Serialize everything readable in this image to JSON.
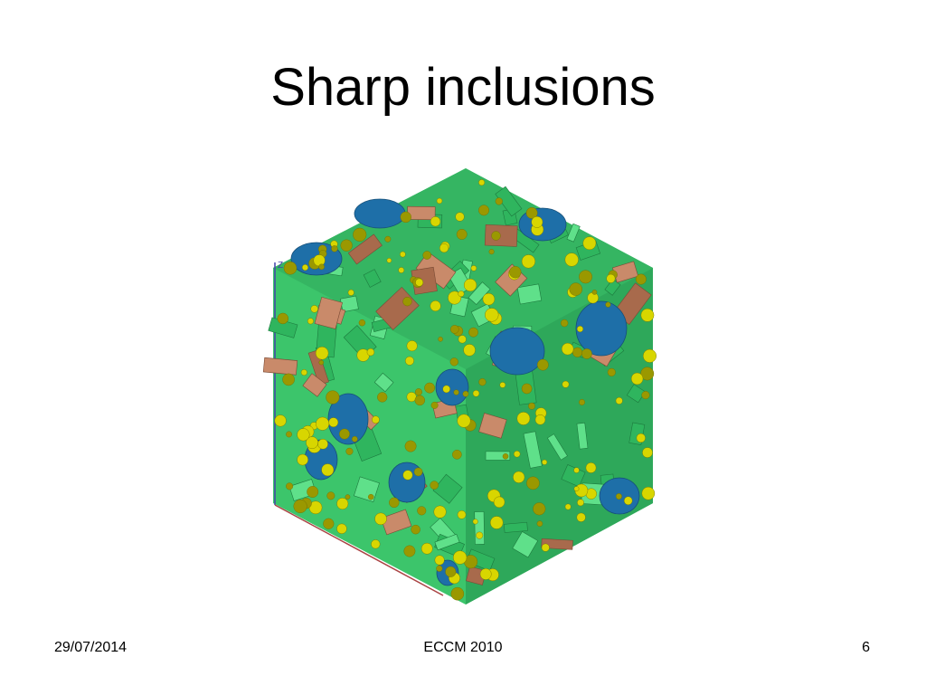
{
  "slide": {
    "title": "Sharp inclusions"
  },
  "figure": {
    "axis_label_z": "Z",
    "colors": {
      "green": "#2fb55e",
      "green_light": "#5fe08a",
      "blue": "#1e6fa8",
      "blue_light": "#2b8fd0",
      "copper": "#c98a6a",
      "copper_dark": "#a86a4c",
      "yellow": "#d8d600",
      "yellow_dark": "#9a9800"
    }
  },
  "footer": {
    "date": "29/07/2014",
    "center": "ECCM 2010",
    "page": "6"
  }
}
